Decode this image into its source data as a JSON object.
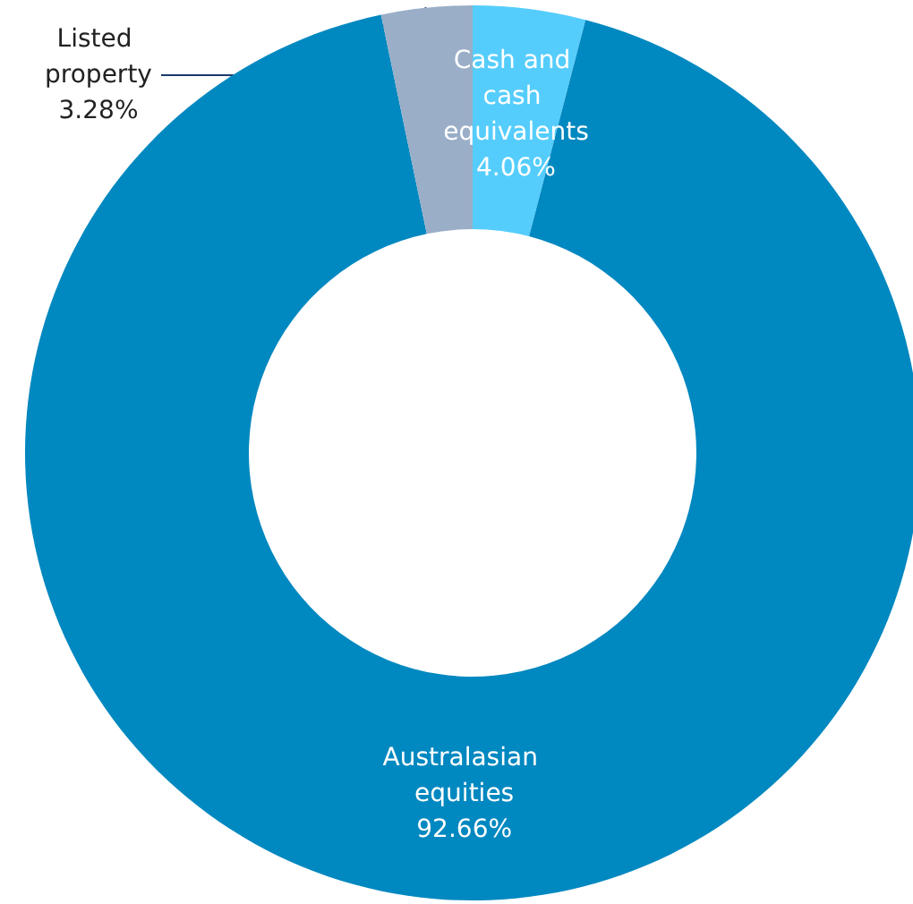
{
  "chart_data": {
    "type": "donut",
    "categories": [
      "Cash and cash equivalents",
      "Australasian equities",
      "Listed property"
    ],
    "values": [
      4.06,
      92.66,
      3.28
    ],
    "colors": [
      "#55cdfc",
      "#0088c0",
      "#9aaec8"
    ],
    "value_labels": [
      "4.06%",
      "92.66%",
      "3.28%"
    ],
    "legend": false
  }
}
